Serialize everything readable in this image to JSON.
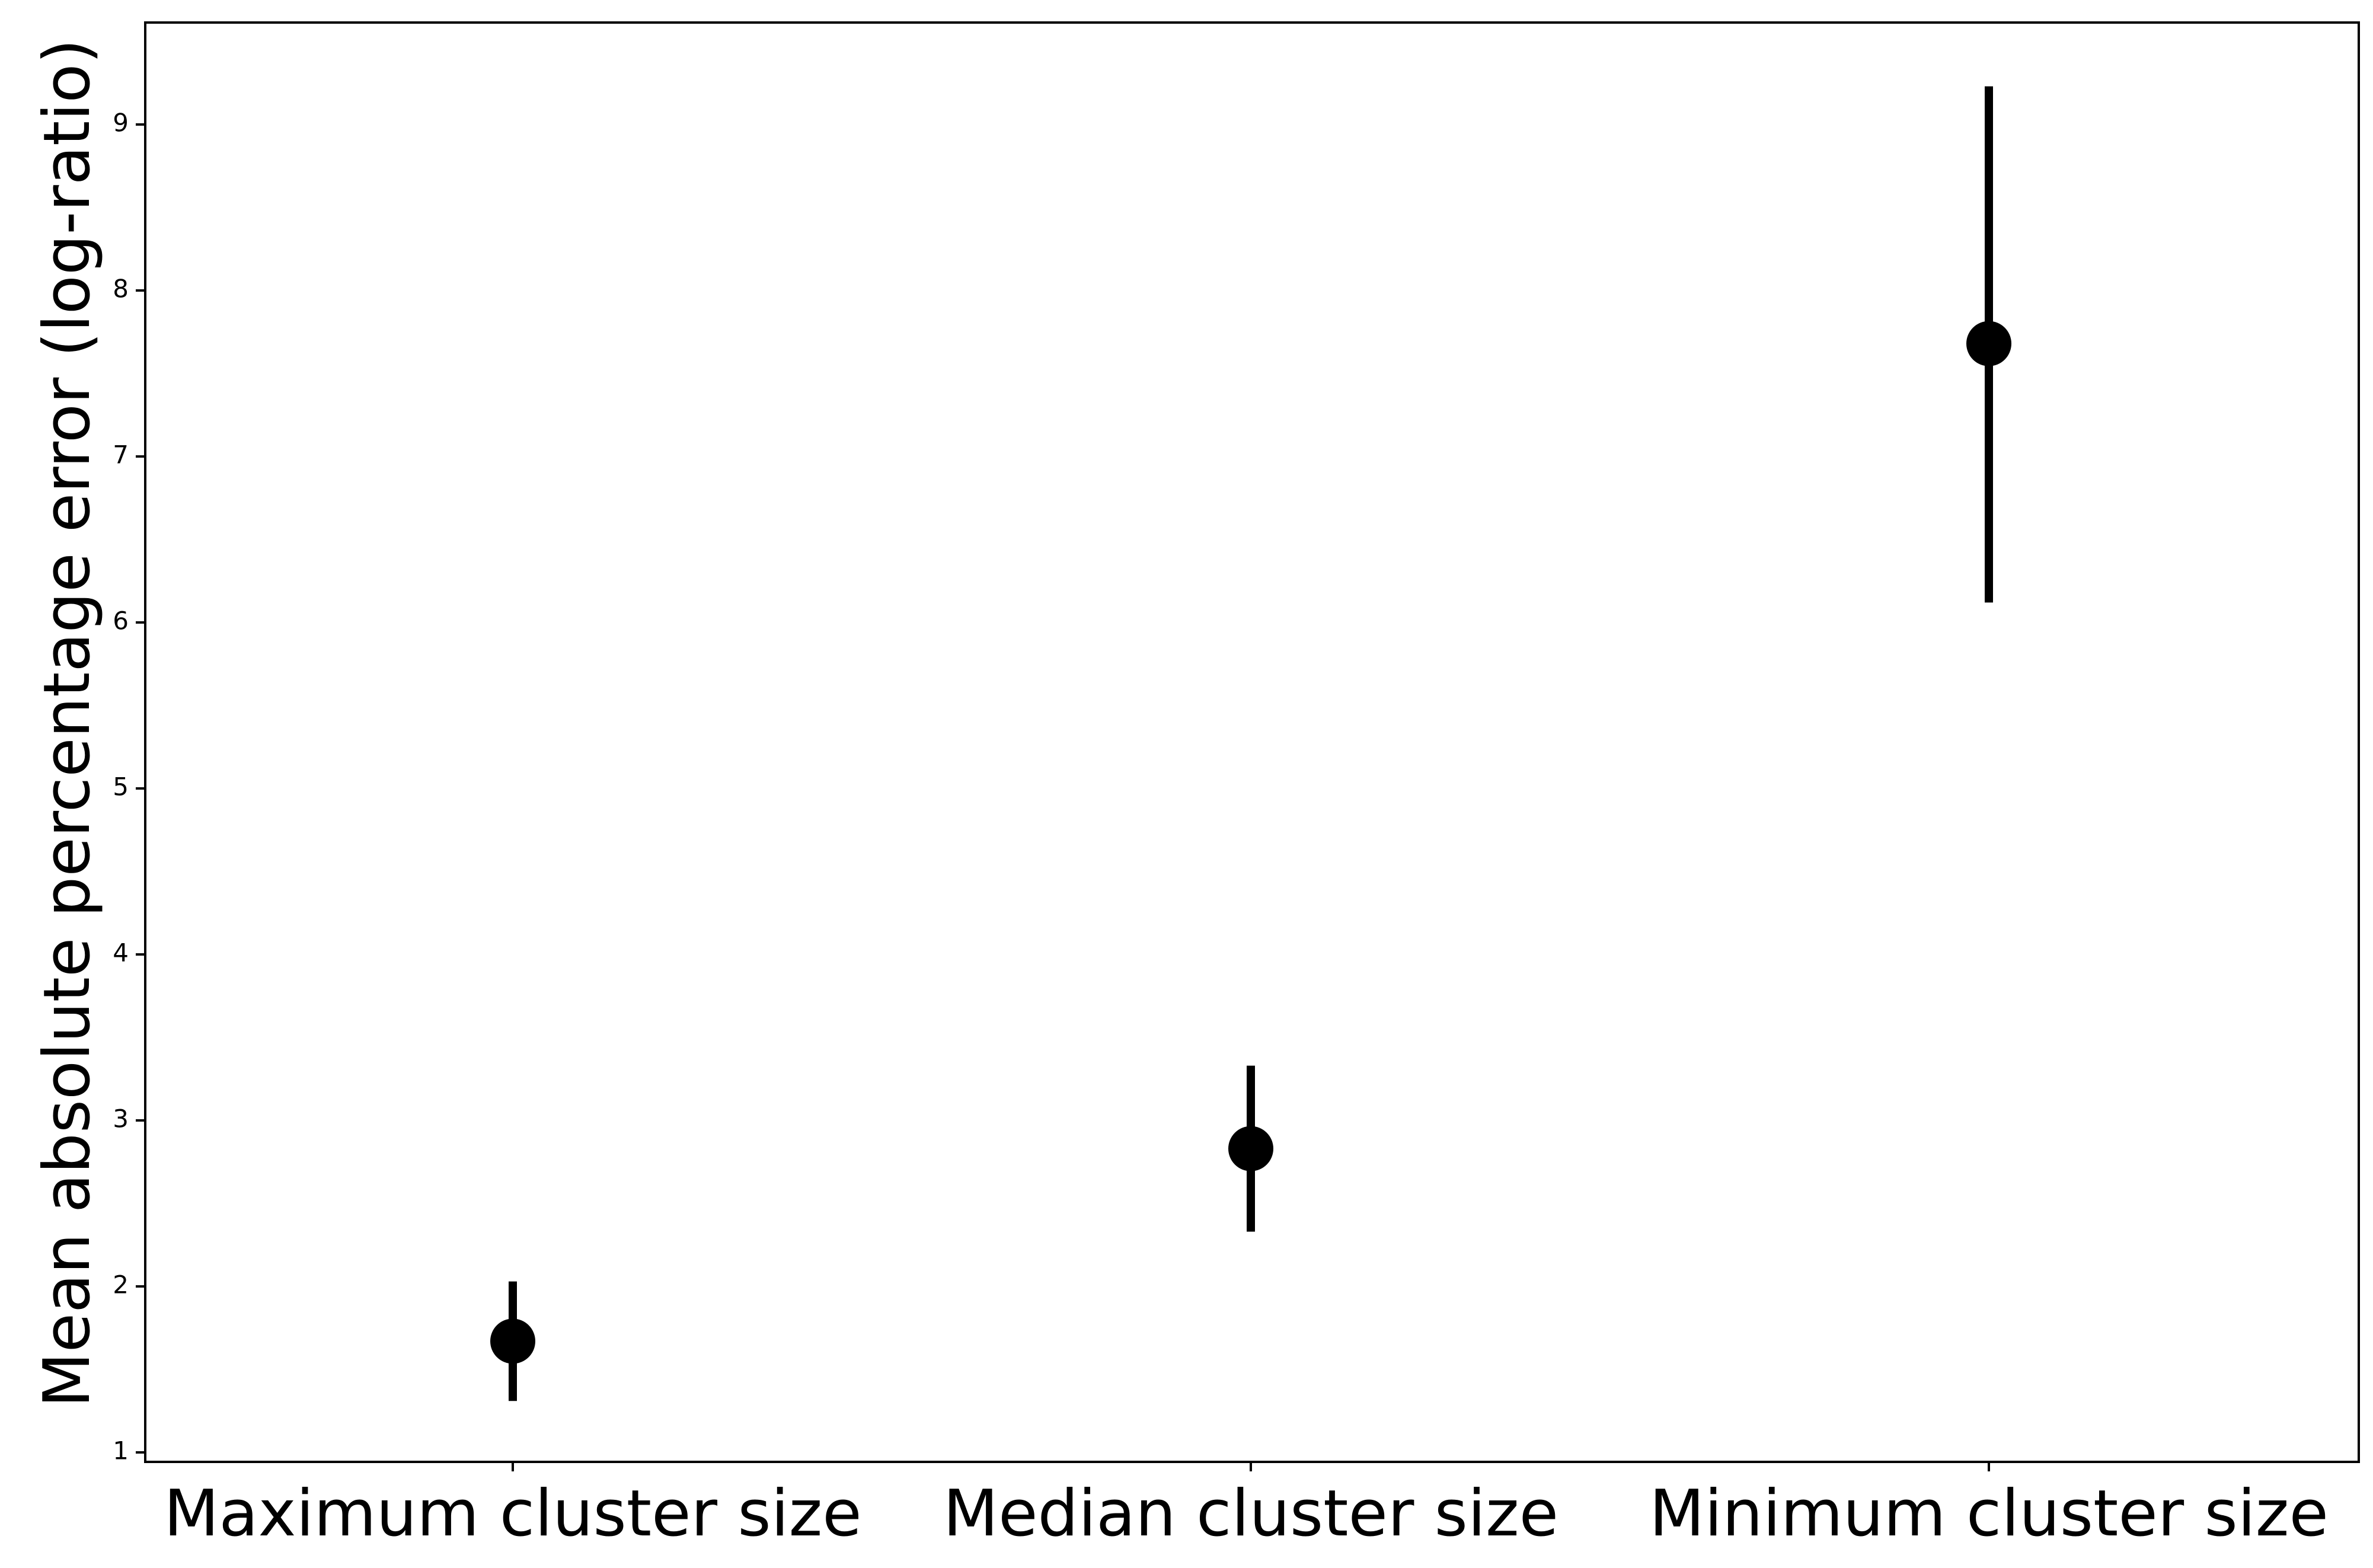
{
  "chart_data": {
    "type": "scatter",
    "title": "",
    "xlabel": "",
    "ylabel": "Mean absolute percentage error (log-ratio)",
    "categories": [
      "Maximum cluster size",
      "Median cluster size",
      "Minimum cluster size"
    ],
    "series": [
      {
        "values": [
          1.67,
          2.83,
          7.68
        ],
        "error_low": [
          1.31,
          2.33,
          6.12
        ],
        "error_high": [
          2.03,
          3.33,
          9.23
        ]
      }
    ],
    "ylim": [
      0.95,
      9.6
    ],
    "yticks": [
      1,
      2,
      3,
      4,
      5,
      6,
      7,
      8,
      9
    ],
    "grid": false,
    "legend": "none",
    "colors": {
      "marker": "#000000",
      "errorbar": "#000000",
      "axes": "#000000",
      "background": "#ffffff"
    }
  }
}
